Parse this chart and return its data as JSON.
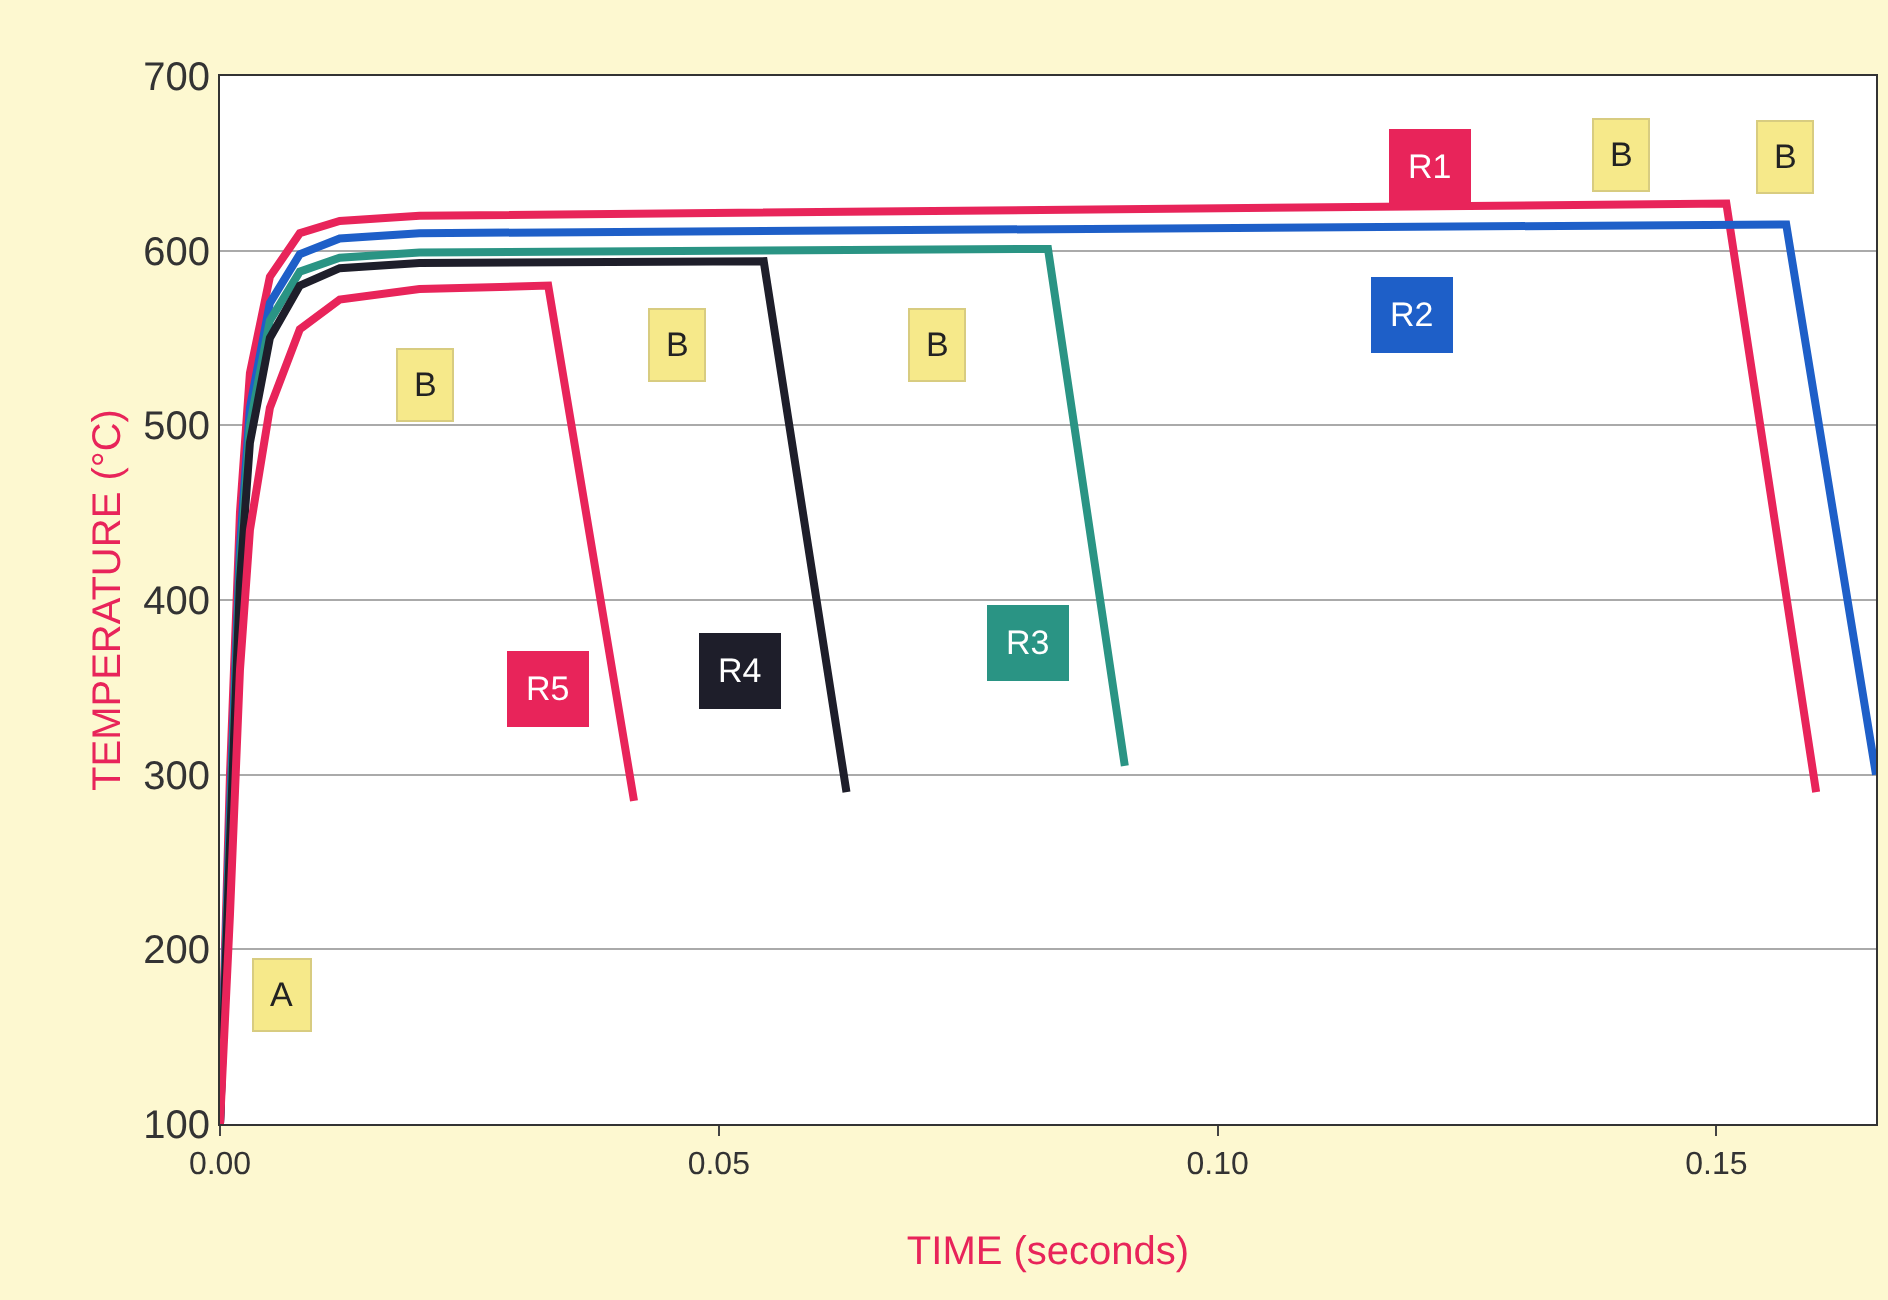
{
  "chart_data": {
    "type": "line",
    "xlabel": "TIME (seconds)",
    "ylabel": "TEMPERATURE (°C)",
    "xlim": [
      0,
      0.166
    ],
    "ylim": [
      100,
      700
    ],
    "xticks": [
      {
        "value": 0,
        "label": "0.00"
      },
      {
        "value": 0.05,
        "label": "0.05"
      },
      {
        "value": 0.1,
        "label": "0.10"
      },
      {
        "value": 0.15,
        "label": "0.15"
      }
    ],
    "yticks": [
      100,
      200,
      300,
      400,
      500,
      600,
      700
    ],
    "grid": "y",
    "legend": false,
    "marker": "none",
    "line_style": "solid",
    "series": [
      {
        "name": "R1",
        "color": "#e8245a",
        "x": [
          0,
          0.001,
          0.002,
          0.003,
          0.005,
          0.008,
          0.012,
          0.02,
          0.151,
          0.16
        ],
        "values": [
          100,
          300,
          450,
          530,
          585,
          610,
          617,
          620,
          627,
          290
        ]
      },
      {
        "name": "R2",
        "color": "#1e5fc8",
        "x": [
          0,
          0.001,
          0.002,
          0.003,
          0.005,
          0.008,
          0.012,
          0.02,
          0.157,
          0.166
        ],
        "values": [
          100,
          280,
          430,
          510,
          570,
          598,
          607,
          610,
          615,
          300
        ]
      },
      {
        "name": "R3",
        "color": "#2a9484",
        "x": [
          0,
          0.001,
          0.002,
          0.003,
          0.005,
          0.008,
          0.012,
          0.02,
          0.083,
          0.0907
        ],
        "values": [
          100,
          270,
          420,
          500,
          560,
          588,
          596,
          599,
          601,
          305
        ]
      },
      {
        "name": "R4",
        "color": "#1e1e2a",
        "x": [
          0,
          0.001,
          0.002,
          0.003,
          0.005,
          0.008,
          0.012,
          0.02,
          0.0545,
          0.0628
        ],
        "values": [
          100,
          260,
          410,
          490,
          550,
          580,
          590,
          593,
          594,
          290
        ]
      },
      {
        "name": "R5",
        "color": "#e8245a",
        "x": [
          0,
          0.001,
          0.002,
          0.003,
          0.005,
          0.008,
          0.012,
          0.02,
          0.0329,
          0.0415
        ],
        "values": [
          100,
          220,
          360,
          440,
          510,
          555,
          572,
          578,
          580,
          285
        ]
      }
    ],
    "annotations": [
      {
        "text": "A",
        "x": 0.0062,
        "y": 174
      },
      {
        "text": "B",
        "x": 0.0205,
        "y": 523
      },
      {
        "text": "B",
        "x": 0.0459,
        "y": 546
      },
      {
        "text": "B",
        "x": 0.0719,
        "y": 546
      },
      {
        "text": "B",
        "x": 0.1405,
        "y": 655
      },
      {
        "text": "B",
        "x": 0.1568,
        "y": 654
      }
    ]
  }
}
